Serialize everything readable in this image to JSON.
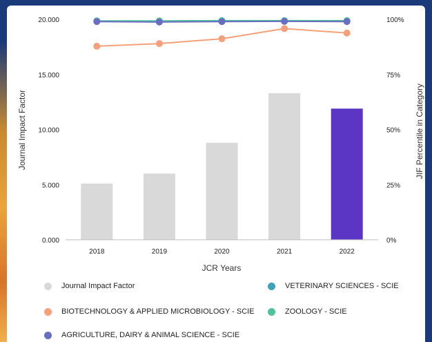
{
  "chart_data": {
    "type": "bar",
    "categories": [
      "2018",
      "2019",
      "2020",
      "2021",
      "2022"
    ],
    "bar_series": {
      "name": "Journal Impact Factor",
      "values": [
        5.1,
        6.0,
        8.8,
        13.3,
        11.9
      ],
      "colors": [
        "#d9d9d9",
        "#d9d9d9",
        "#d9d9d9",
        "#d9d9d9",
        "#5b36c4"
      ]
    },
    "line_series": [
      {
        "name": "VETERINARY SCIENCES - SCIE",
        "color": "#3fa2b8",
        "values": [
          99.2,
          99.0,
          99.1,
          99.2,
          99.2
        ]
      },
      {
        "name": "BIOTECHNOLOGY & APPLIED MICROBIOLOGY - SCIE",
        "color": "#f4a07a",
        "values": [
          87.8,
          89.0,
          91.2,
          95.8,
          93.8
        ]
      },
      {
        "name": "ZOOLOGY - SCIE",
        "color": "#4cc39a",
        "values": [
          99.3,
          99.3,
          99.4,
          99.4,
          99.4
        ]
      },
      {
        "name": "AGRICULTURE, DAIRY & ANIMAL SCIENCE - SCIE",
        "color": "#6a6ec0",
        "values": [
          99.0,
          98.8,
          99.0,
          99.1,
          99.0
        ]
      }
    ],
    "xlabel": "JCR Years",
    "ylabel": "Journal Impact Factor",
    "y2label": "JIF Percentile in Category",
    "ylim": [
      0,
      20
    ],
    "y2lim": [
      0,
      100
    ],
    "y_ticks": [
      "0.000",
      "5.000",
      "10.000",
      "15.000",
      "20.000"
    ],
    "y2_ticks": [
      "0%",
      "25%",
      "50%",
      "75%",
      "100%"
    ],
    "legend_position": "bottom",
    "grid": false
  },
  "legend": {
    "items": [
      {
        "label": "Journal Impact Factor",
        "color": "#d9d9d9"
      },
      {
        "label": "VETERINARY SCIENCES - SCIE",
        "color": "#3fa2b8"
      },
      {
        "label": "BIOTECHNOLOGY & APPLIED MICROBIOLOGY - SCIE",
        "color": "#f4a07a"
      },
      {
        "label": "ZOOLOGY - SCIE",
        "color": "#4cc39a"
      },
      {
        "label": "AGRICULTURE, DAIRY & ANIMAL SCIENCE - SCIE",
        "color": "#6a6ec0"
      }
    ]
  }
}
